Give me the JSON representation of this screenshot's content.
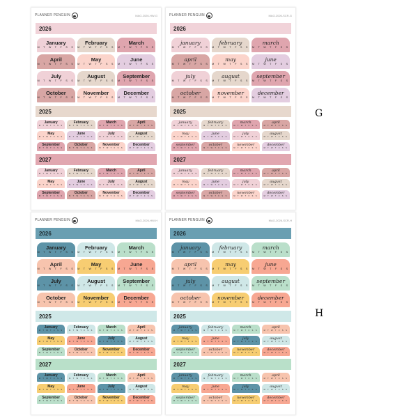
{
  "brand": "PLANNER PENGUIN",
  "weekdays": "M T W T F S S",
  "months_print": [
    "January",
    "February",
    "March",
    "April",
    "May",
    "June",
    "July",
    "August",
    "September",
    "October",
    "November",
    "December"
  ],
  "months_script": [
    "january",
    "february",
    "march",
    "april",
    "may",
    "june",
    "july",
    "august",
    "september",
    "october",
    "november",
    "december"
  ],
  "years": [
    "2026",
    "2025",
    "2027"
  ],
  "palettes": {
    "G": {
      "cells": [
        "#f0d1d7",
        "#e5d7cc",
        "#dfa5ae",
        "#d8a6a4",
        "#fbd4cb",
        "#e3cde0"
      ],
      "years": [
        "#f1d3d9",
        "#e7d8cd",
        "#e1a7b0"
      ]
    },
    "H": {
      "cells": [
        "#5d93a7",
        "#cfe7e7",
        "#badfca",
        "#f7c4ae",
        "#f7cd72",
        "#f7a792"
      ],
      "years": [
        "#6a9fb2",
        "#cfe8e8",
        "#b9e0c9"
      ]
    }
  },
  "sheets": [
    {
      "palette": "G",
      "style": "print",
      "code": "MAG-2026-HW-G"
    },
    {
      "palette": "G",
      "style": "script",
      "code": "MAG-2026-SCR-G"
    },
    {
      "palette": "H",
      "style": "print",
      "code": "MAG-2026-HW-H"
    },
    {
      "palette": "H",
      "style": "script",
      "code": "MAG-2026-SCR-H"
    }
  ],
  "labels": {
    "G": "G",
    "H": "H"
  }
}
